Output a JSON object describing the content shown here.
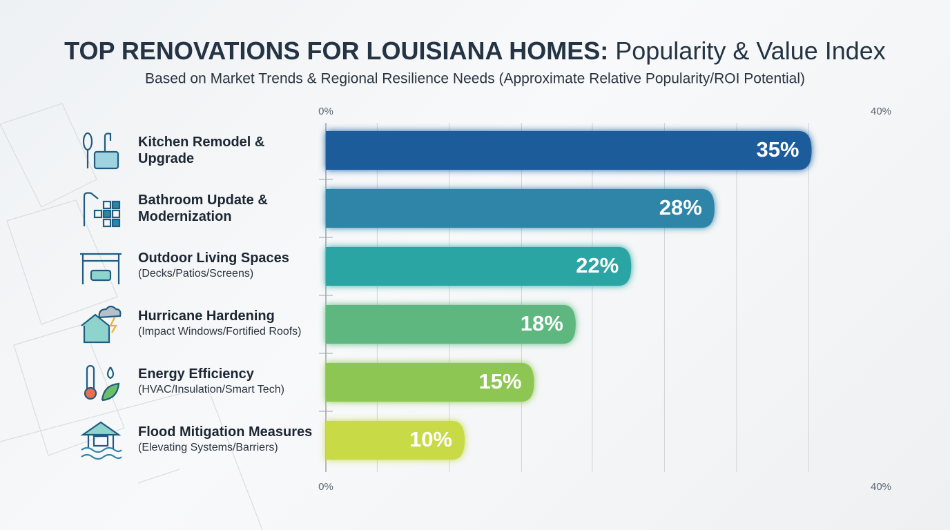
{
  "chart_data": {
    "type": "hbar",
    "title": [
      "TOP RENOVATIONS FOR LOUISIANA HOMES:",
      "Popularity & Value Index"
    ],
    "subtitle": "Based on Market Trends & Regional Resilience Needs (Approximate Relative Popularity/ROI Potential)",
    "categories": [
      "Kitchen Remodel & Upgrade",
      "Bathroom Update & Modernization",
      "Outdoor Living Spaces",
      "Hurricane Hardening",
      "Energy Efficiency",
      "Flood Mitigation Measures"
    ],
    "category_details": [
      null,
      null,
      "(Decks/Patios/Screens)",
      "(Impact Windows/Fortified Roofs)",
      "(HVAC/Insulation/Smart Tech)",
      "(Elevating Systems/Barriers)"
    ],
    "values": [
      35,
      28,
      22,
      18,
      15,
      10
    ],
    "value_labels": [
      "35%",
      "28%",
      "22%",
      "18%",
      "15%",
      "10%"
    ],
    "colors": [
      "#1f5c9b",
      "#2e85a8",
      "#2aa5a3",
      "#5db77f",
      "#8ec653",
      "#c8da44"
    ],
    "xlim": [
      0,
      40
    ],
    "xticks": [
      {
        "value": 0,
        "label": "0%"
      },
      {
        "value": 40,
        "label": "40%"
      }
    ],
    "xgrid": [
      3.7,
      8.9,
      14.1,
      19.2,
      24.4,
      29.6,
      34.8
    ],
    "grid": true
  }
}
